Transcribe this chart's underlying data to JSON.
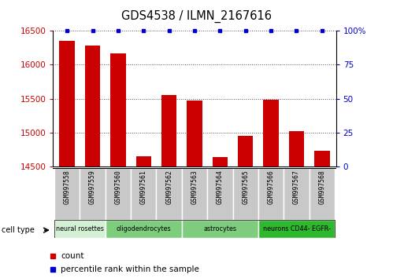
{
  "title": "GDS4538 / ILMN_2167616",
  "samples": [
    "GSM997558",
    "GSM997559",
    "GSM997560",
    "GSM997561",
    "GSM997562",
    "GSM997563",
    "GSM997564",
    "GSM997565",
    "GSM997566",
    "GSM997567",
    "GSM997568"
  ],
  "counts": [
    16350,
    16280,
    16170,
    14650,
    15550,
    15470,
    14640,
    14950,
    15490,
    15020,
    14740
  ],
  "percentile": [
    100,
    100,
    100,
    100,
    100,
    100,
    100,
    100,
    100,
    100,
    100
  ],
  "ylim": [
    14500,
    16500
  ],
  "yticks": [
    14500,
    15000,
    15500,
    16000,
    16500
  ],
  "right_yticks": [
    0,
    25,
    50,
    75,
    100
  ],
  "right_ylabels": [
    "0",
    "25",
    "50",
    "75",
    "100%"
  ],
  "bar_color": "#cc0000",
  "dot_color": "#0000cc",
  "background_color": "#ffffff",
  "cell_type_groups": [
    {
      "label": "neural rosettes",
      "n_samples": 2,
      "color": "#d4f0d4"
    },
    {
      "label": "oligodendrocytes",
      "n_samples": 3,
      "color": "#7dcd7d"
    },
    {
      "label": "astrocytes",
      "n_samples": 3,
      "color": "#7dcd7d"
    },
    {
      "label": "neurons CD44- EGFR-",
      "n_samples": 3,
      "color": "#2db82d"
    }
  ],
  "sample_box_color": "#c8c8c8",
  "sample_box_edge_color": "#ffffff"
}
